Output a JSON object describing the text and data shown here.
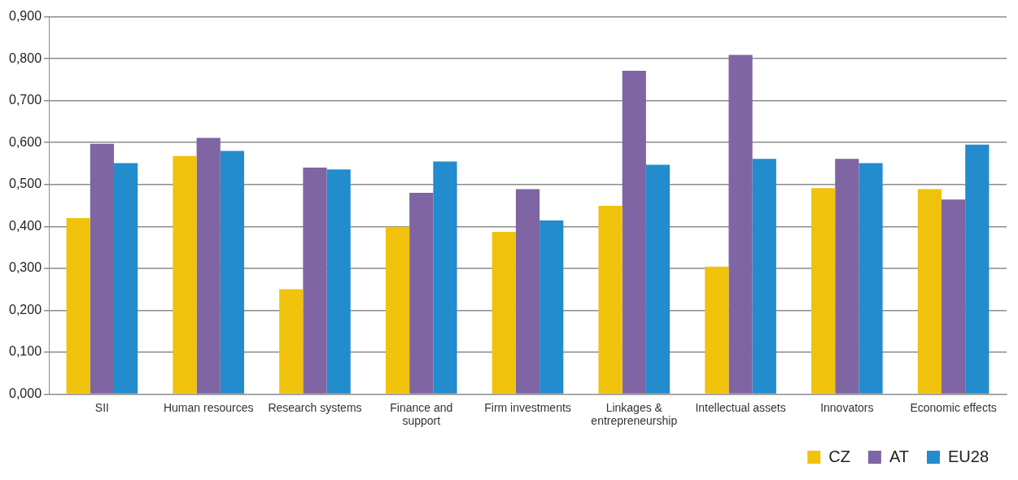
{
  "chart_data": {
    "type": "bar",
    "categories": [
      "SII",
      "Human resources",
      "Research systems",
      "Finance and support",
      "Firm investments",
      "Linkages & entrepreneurship",
      "Intellectual assets",
      "Innovators",
      "Economic effects"
    ],
    "series": [
      {
        "name": "CZ",
        "color": "#f0c20b",
        "values": [
          0.42,
          0.568,
          0.25,
          0.399,
          0.387,
          0.449,
          0.304,
          0.491,
          0.489
        ]
      },
      {
        "name": "AT",
        "color": "#7f65a3",
        "values": [
          0.597,
          0.611,
          0.54,
          0.48,
          0.489,
          0.771,
          0.809,
          0.561,
          0.464
        ]
      },
      {
        "name": "EU28",
        "color": "#228ccd",
        "values": [
          0.551,
          0.58,
          0.536,
          0.555,
          0.414,
          0.547,
          0.561,
          0.551,
          0.595
        ]
      }
    ],
    "ylim": [
      0,
      0.9
    ],
    "yticks": [
      {
        "value": 0,
        "label": "0,000"
      },
      {
        "value": 0.1,
        "label": "0,100"
      },
      {
        "value": 0.2,
        "label": "0,200"
      },
      {
        "value": 0.3,
        "label": "0,300"
      },
      {
        "value": 0.4,
        "label": "0,400"
      },
      {
        "value": 0.5,
        "label": "0,500"
      },
      {
        "value": 0.6,
        "label": "0,600"
      },
      {
        "value": 0.7,
        "label": "0,700"
      },
      {
        "value": 0.8,
        "label": "0,800"
      },
      {
        "value": 0.9,
        "label": "0,900"
      }
    ],
    "grid": "y",
    "legend": "bottom right"
  }
}
